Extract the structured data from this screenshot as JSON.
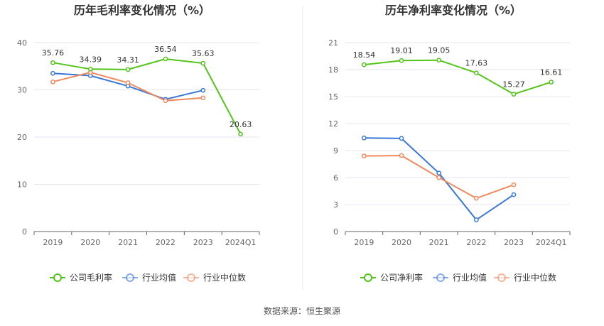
{
  "source_text": "数据来源：恒生聚源",
  "chart_data": [
    {
      "type": "line",
      "title": "历年毛利率变化情况（%）",
      "categories": [
        "2019",
        "2020",
        "2021",
        "2022",
        "2023",
        "2024Q1"
      ],
      "ylim": [
        0,
        40
      ],
      "yticks": [
        0,
        10,
        20,
        30,
        40
      ],
      "grid": true,
      "legend_position": "bottom-center",
      "series": [
        {
          "name": "公司毛利率",
          "color": "#52c41a",
          "labeled": true,
          "values": [
            35.76,
            34.39,
            34.31,
            36.54,
            35.63,
            20.63
          ]
        },
        {
          "name": "行业均值",
          "color": "#3a78d8",
          "labeled": false,
          "values": [
            33.5,
            33.0,
            30.8,
            28.0,
            29.9,
            null
          ]
        },
        {
          "name": "行业中位数",
          "color": "#f08a5d",
          "labeled": false,
          "values": [
            31.7,
            33.7,
            31.5,
            27.7,
            28.3,
            null
          ]
        }
      ]
    },
    {
      "type": "line",
      "title": "历年净利率变化情况（%）",
      "categories": [
        "2019",
        "2020",
        "2021",
        "2022",
        "2023",
        "2024Q1"
      ],
      "ylim": [
        0,
        21
      ],
      "yticks": [
        0,
        3,
        6,
        9,
        12,
        15,
        18,
        21
      ],
      "grid": true,
      "legend_position": "bottom-center",
      "series": [
        {
          "name": "公司净利率",
          "color": "#52c41a",
          "labeled": true,
          "values": [
            18.54,
            19.01,
            19.05,
            17.63,
            15.27,
            16.61
          ]
        },
        {
          "name": "行业均值",
          "color": "#3a78d8",
          "labeled": false,
          "values": [
            10.4,
            10.35,
            6.5,
            1.3,
            4.1,
            null
          ]
        },
        {
          "name": "行业中位数",
          "color": "#f08a5d",
          "labeled": false,
          "values": [
            8.4,
            8.45,
            6.0,
            3.7,
            5.2,
            null
          ]
        }
      ]
    }
  ]
}
